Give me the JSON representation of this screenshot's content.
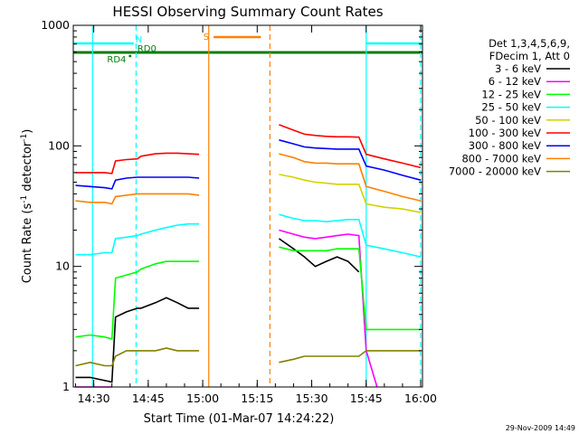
{
  "chart_data": {
    "type": "line",
    "title": "HESSI Observing Summary Count Rates",
    "xlabel": "Start Time (01-Mar-07 14:24:22)",
    "ylabel": "Count Rate (s",
    "ylabel_sup": "-1",
    "ylabel_tail": " detector",
    "ylabel_sup2": "-1",
    "ylabel_close": ")",
    "yscale": "log",
    "xlim": [
      "14:24:22",
      "16:00:30"
    ],
    "ylim": [
      1,
      1000
    ],
    "x_ticks": [
      "14:30",
      "14:45",
      "15:00",
      "15:15",
      "15:30",
      "15:45",
      "16:00"
    ],
    "y_ticks": [
      "1",
      "10",
      "100",
      "1000"
    ],
    "legend": {
      "header": [
        "Det 1,3,4,5,6,9,",
        "FDecim 1, Att 0"
      ],
      "placement": "right"
    },
    "footer_timestamp": "29-Nov-2009 14:49",
    "flags": [
      {
        "label": "N",
        "color": "#00ffff",
        "segments": [
          [
            "14:24:22",
            "14:41:00"
          ],
          [
            "15:45:00",
            "16:00:30"
          ]
        ]
      },
      {
        "label": "RD0",
        "color": "#007f00",
        "segments": [
          [
            "14:24:22",
            "16:00:30"
          ]
        ]
      },
      {
        "label": "RD4",
        "color": "#007f00",
        "segments": [
          [
            "14:39:40",
            "14:40:20"
          ]
        ]
      },
      {
        "label": "S",
        "color": "#ff8000",
        "segments": [
          [
            "15:03:00",
            "15:16:00"
          ]
        ]
      }
    ],
    "vertical_lines": [
      {
        "time": "14:29:40",
        "color": "#00ffff",
        "style": "solid"
      },
      {
        "time": "14:41:40",
        "color": "#00ffff",
        "style": "dashed"
      },
      {
        "time": "15:01:40",
        "color": "#ff8000",
        "style": "solid"
      },
      {
        "time": "15:18:30",
        "color": "#ff8000",
        "style": "dashed"
      },
      {
        "time": "15:45:00",
        "color": "#00ffff",
        "style": "solid"
      },
      {
        "time": "16:00:00",
        "color": "#00ffff",
        "style": "dashed"
      }
    ],
    "series": [
      {
        "name": "3 - 6 keV",
        "color": "#000000",
        "points": [
          [
            "14:25",
            1.2
          ],
          [
            "14:29",
            1.2
          ],
          [
            "14:35",
            1.1
          ],
          [
            "14:36",
            3.8
          ],
          [
            "14:39",
            4.2
          ],
          [
            "14:42",
            4.5
          ],
          [
            "14:43",
            4.5
          ],
          [
            "14:47",
            5.0
          ],
          [
            "14:50",
            5.5
          ],
          [
            "14:53",
            5.0
          ],
          [
            "14:56",
            4.5
          ],
          [
            "14:59",
            4.5
          ],
          [
            "15:21",
            17
          ],
          [
            "15:25",
            14
          ],
          [
            "15:28",
            12
          ],
          [
            "15:31",
            10
          ],
          [
            "15:34",
            11
          ],
          [
            "15:37",
            12
          ],
          [
            "15:40",
            11
          ],
          [
            "15:43",
            9
          ]
        ]
      },
      {
        "name": "6 - 12 keV",
        "color": "#ff00ff",
        "points": [
          [
            "14:25",
            1.0
          ],
          [
            "14:35",
            1.0
          ],
          [
            "15:21",
            20
          ],
          [
            "15:25",
            18.5
          ],
          [
            "15:28",
            17.5
          ],
          [
            "15:31",
            17
          ],
          [
            "15:34",
            17.5
          ],
          [
            "15:37",
            18
          ],
          [
            "15:40",
            18.5
          ],
          [
            "15:43",
            18
          ],
          [
            "15:45",
            2.0
          ],
          [
            "15:48",
            1.0
          ]
        ]
      },
      {
        "name": "12 - 25 keV",
        "color": "#00ff00",
        "points": [
          [
            "14:25",
            2.6
          ],
          [
            "14:29",
            2.7
          ],
          [
            "14:33",
            2.6
          ],
          [
            "14:35",
            2.5
          ],
          [
            "14:36",
            8.0
          ],
          [
            "14:39",
            8.5
          ],
          [
            "14:42",
            9.0
          ],
          [
            "14:43",
            9.5
          ],
          [
            "14:47",
            10.5
          ],
          [
            "14:50",
            11
          ],
          [
            "14:53",
            11
          ],
          [
            "14:56",
            11
          ],
          [
            "14:59",
            11
          ],
          [
            "15:21",
            14.5
          ],
          [
            "15:25",
            13.5
          ],
          [
            "15:28",
            13.5
          ],
          [
            "15:31",
            13.5
          ],
          [
            "15:34",
            13.5
          ],
          [
            "15:37",
            14
          ],
          [
            "15:40",
            14
          ],
          [
            "15:43",
            14
          ],
          [
            "15:45",
            3.0
          ],
          [
            "15:50",
            3.0
          ],
          [
            "15:55",
            3.0
          ],
          [
            "16:00",
            3.0
          ]
        ]
      },
      {
        "name": "25 - 50 keV",
        "color": "#00ffff",
        "points": [
          [
            "14:25",
            12.5
          ],
          [
            "14:29",
            12.5
          ],
          [
            "14:33",
            13
          ],
          [
            "14:35",
            13
          ],
          [
            "14:36",
            17
          ],
          [
            "14:39",
            17.5
          ],
          [
            "14:42",
            18
          ],
          [
            "14:43",
            18.5
          ],
          [
            "14:47",
            20
          ],
          [
            "14:50",
            21
          ],
          [
            "14:53",
            22
          ],
          [
            "14:56",
            22.5
          ],
          [
            "14:59",
            22.5
          ],
          [
            "15:21",
            27
          ],
          [
            "15:25",
            25
          ],
          [
            "15:28",
            24
          ],
          [
            "15:31",
            24
          ],
          [
            "15:34",
            23.5
          ],
          [
            "15:37",
            24
          ],
          [
            "15:40",
            24.5
          ],
          [
            "15:43",
            24.5
          ],
          [
            "15:45",
            15
          ],
          [
            "15:50",
            14
          ],
          [
            "15:55",
            13
          ],
          [
            "16:00",
            12
          ]
        ]
      },
      {
        "name": "50 - 100 keV",
        "color": "#d2d200",
        "points": [
          [
            "15:21",
            58
          ],
          [
            "15:25",
            55
          ],
          [
            "15:28",
            52
          ],
          [
            "15:31",
            50
          ],
          [
            "15:34",
            49
          ],
          [
            "15:37",
            48
          ],
          [
            "15:40",
            48
          ],
          [
            "15:43",
            48
          ],
          [
            "15:45",
            33
          ],
          [
            "15:50",
            31
          ],
          [
            "15:55",
            30
          ],
          [
            "16:00",
            28
          ]
        ]
      },
      {
        "name": "100 - 300 keV",
        "color": "#ff0000",
        "points": [
          [
            "14:25",
            60
          ],
          [
            "14:29",
            60
          ],
          [
            "14:33",
            60
          ],
          [
            "14:35",
            59
          ],
          [
            "14:36",
            75
          ],
          [
            "14:39",
            77
          ],
          [
            "14:42",
            78
          ],
          [
            "14:43",
            82
          ],
          [
            "14:47",
            86
          ],
          [
            "14:50",
            87
          ],
          [
            "14:53",
            87
          ],
          [
            "14:56",
            86
          ],
          [
            "14:59",
            85
          ],
          [
            "15:21",
            150
          ],
          [
            "15:25",
            135
          ],
          [
            "15:28",
            125
          ],
          [
            "15:31",
            122
          ],
          [
            "15:34",
            120
          ],
          [
            "15:37",
            119
          ],
          [
            "15:40",
            119
          ],
          [
            "15:43",
            118
          ],
          [
            "15:45",
            85
          ],
          [
            "15:50",
            78
          ],
          [
            "15:55",
            72
          ],
          [
            "16:00",
            66
          ]
        ]
      },
      {
        "name": "300 - 800 keV",
        "color": "#0000ff",
        "points": [
          [
            "14:25",
            47
          ],
          [
            "14:29",
            46
          ],
          [
            "14:33",
            45
          ],
          [
            "14:35",
            44
          ],
          [
            "14:36",
            52
          ],
          [
            "14:39",
            54
          ],
          [
            "14:42",
            55
          ],
          [
            "14:43",
            55
          ],
          [
            "14:47",
            55
          ],
          [
            "14:50",
            55
          ],
          [
            "14:53",
            55
          ],
          [
            "14:56",
            55
          ],
          [
            "14:59",
            54
          ],
          [
            "15:21",
            112
          ],
          [
            "15:25",
            104
          ],
          [
            "15:28",
            98
          ],
          [
            "15:31",
            96
          ],
          [
            "15:34",
            95
          ],
          [
            "15:37",
            94
          ],
          [
            "15:40",
            94
          ],
          [
            "15:43",
            94
          ],
          [
            "15:45",
            68
          ],
          [
            "15:50",
            63
          ],
          [
            "15:55",
            57
          ],
          [
            "16:00",
            52
          ]
        ]
      },
      {
        "name": "800 - 7000 keV",
        "color": "#ff8000",
        "points": [
          [
            "14:25",
            35
          ],
          [
            "14:29",
            34
          ],
          [
            "14:33",
            34
          ],
          [
            "14:35",
            33
          ],
          [
            "14:36",
            38
          ],
          [
            "14:39",
            39
          ],
          [
            "14:42",
            40
          ],
          [
            "14:43",
            40
          ],
          [
            "14:47",
            40
          ],
          [
            "14:50",
            40
          ],
          [
            "14:53",
            40
          ],
          [
            "14:56",
            40
          ],
          [
            "14:59",
            39
          ],
          [
            "15:21",
            86
          ],
          [
            "15:25",
            80
          ],
          [
            "15:28",
            74
          ],
          [
            "15:31",
            72
          ],
          [
            "15:34",
            72
          ],
          [
            "15:37",
            71
          ],
          [
            "15:40",
            71
          ],
          [
            "15:43",
            71
          ],
          [
            "15:45",
            46
          ],
          [
            "15:50",
            42
          ],
          [
            "15:55",
            38
          ],
          [
            "16:00",
            35
          ]
        ]
      },
      {
        "name": "7000 - 20000 keV",
        "color": "#808000",
        "points": [
          [
            "14:25",
            1.5
          ],
          [
            "14:29",
            1.6
          ],
          [
            "14:33",
            1.5
          ],
          [
            "14:35",
            1.5
          ],
          [
            "14:36",
            1.8
          ],
          [
            "14:39",
            2.0
          ],
          [
            "14:42",
            2.0
          ],
          [
            "14:43",
            2.0
          ],
          [
            "14:47",
            2.0
          ],
          [
            "14:50",
            2.1
          ],
          [
            "14:53",
            2.0
          ],
          [
            "14:56",
            2.0
          ],
          [
            "14:59",
            2.0
          ],
          [
            "15:21",
            1.6
          ],
          [
            "15:25",
            1.7
          ],
          [
            "15:28",
            1.8
          ],
          [
            "15:31",
            1.8
          ],
          [
            "15:34",
            1.8
          ],
          [
            "15:37",
            1.8
          ],
          [
            "15:40",
            1.8
          ],
          [
            "15:43",
            1.8
          ],
          [
            "15:45",
            2.0
          ],
          [
            "15:50",
            2.0
          ],
          [
            "15:55",
            2.0
          ],
          [
            "16:00",
            2.0
          ]
        ]
      }
    ]
  }
}
